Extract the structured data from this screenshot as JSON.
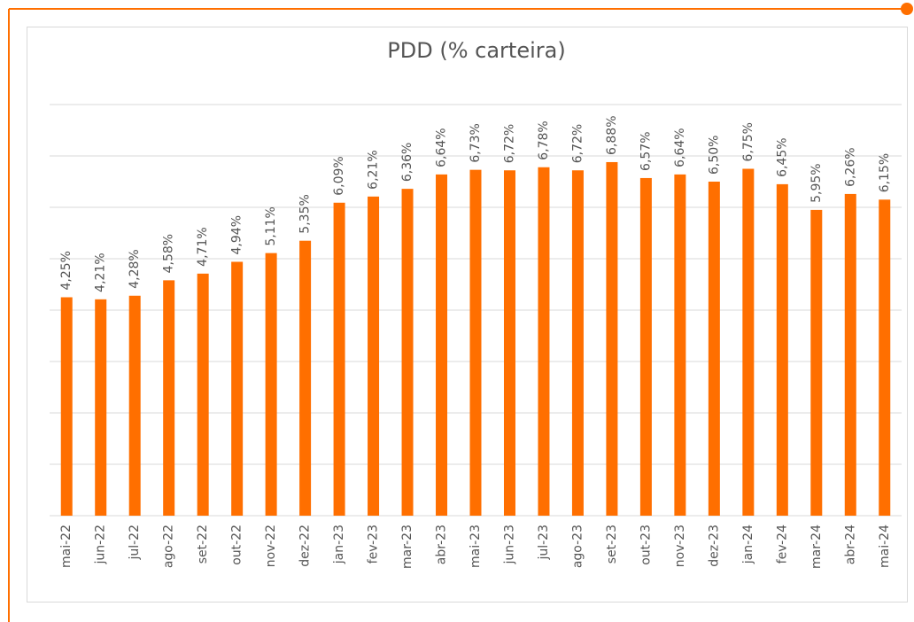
{
  "chart_data": {
    "type": "bar",
    "title": "PDD (% carteira)",
    "categories": [
      "mai-22",
      "jun-22",
      "jul-22",
      "ago-22",
      "set-22",
      "out-22",
      "nov-22",
      "dez-22",
      "jan-23",
      "fev-23",
      "mar-23",
      "abr-23",
      "mai-23",
      "jun-23",
      "jul-23",
      "ago-23",
      "set-23",
      "out-23",
      "nov-23",
      "dez-23",
      "jan-24",
      "fev-24",
      "mar-24",
      "abr-24",
      "mai-24"
    ],
    "values": [
      4.25,
      4.21,
      4.28,
      4.58,
      4.71,
      4.94,
      5.11,
      5.35,
      6.09,
      6.21,
      6.36,
      6.64,
      6.73,
      6.72,
      6.78,
      6.72,
      6.88,
      6.57,
      6.64,
      6.5,
      6.75,
      6.45,
      5.95,
      6.26,
      6.15
    ],
    "value_labels": [
      "4,25%",
      "4,21%",
      "4,28%",
      "4,58%",
      "4,71%",
      "4,94%",
      "5,11%",
      "5,35%",
      "6,09%",
      "6,21%",
      "6,36%",
      "6,64%",
      "6,73%",
      "6,72%",
      "6,78%",
      "6,72%",
      "6,88%",
      "6,57%",
      "6,64%",
      "6,50%",
      "6,75%",
      "6,45%",
      "5,95%",
      "6,26%",
      "6,15%"
    ],
    "color": "#ff6f00",
    "ylim": [
      0,
      8
    ],
    "yticks": [
      0,
      1,
      2,
      3,
      4,
      5,
      6,
      7,
      8
    ],
    "grid": true
  }
}
